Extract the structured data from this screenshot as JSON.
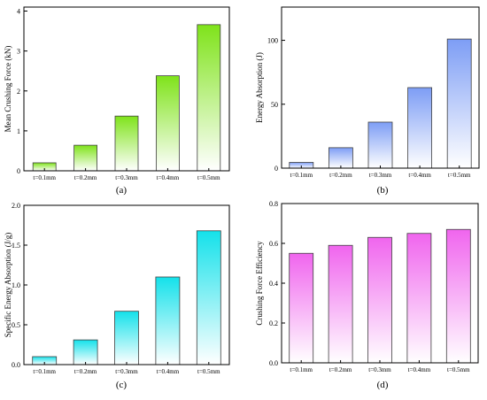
{
  "charts": [
    {
      "panel_label": "(a)",
      "ylabel": "Mean Crushing Force (kN)",
      "yticks": [
        "0",
        "1",
        "2",
        "3",
        "4"
      ],
      "gradient_top": "#7fe31a",
      "gradient_bottom": "#ffffff",
      "border": "#404040"
    },
    {
      "panel_label": "(b)",
      "ylabel": "Energy Absorption (J)",
      "yticks": [
        "0",
        "50",
        "100"
      ],
      "gradient_top": "#7d9df5",
      "gradient_bottom": "#ffffff",
      "border": "#404040"
    },
    {
      "panel_label": "(c)",
      "ylabel": "Specific Energy Absorption (J/g)",
      "yticks": [
        "0.0",
        "0.5",
        "1.0",
        "1.5",
        "2.0"
      ],
      "gradient_top": "#14e1ea",
      "gradient_bottom": "#ffffff",
      "border": "#404040"
    },
    {
      "panel_label": "(d)",
      "ylabel": "Crushing Force Efficiency",
      "yticks": [
        "0.0",
        "0.2",
        "0.4",
        "0.6",
        "0.8"
      ],
      "gradient_top": "#f065ee",
      "gradient_bottom": "#ffffff",
      "border": "#404040"
    }
  ],
  "chart_data": [
    {
      "type": "bar",
      "categories": [
        "t=0.1mm",
        "t=0.2mm",
        "t=0.3mm",
        "t=0.4mm",
        "t=0.5mm"
      ],
      "values": [
        0.2,
        0.64,
        1.37,
        2.38,
        3.66
      ],
      "title": "",
      "xlabel": "",
      "ylabel": "Mean Crushing Force (kN)",
      "ylim": [
        0,
        4.1
      ],
      "grid": false
    },
    {
      "type": "bar",
      "categories": [
        "t=0.1mm",
        "t=0.2mm",
        "t=0.3mm",
        "t=0.4mm",
        "t=0.5mm"
      ],
      "values": [
        4.5,
        16,
        36,
        63,
        101
      ],
      "title": "",
      "xlabel": "",
      "ylabel": "Energy Absorption (J)",
      "ylim": [
        0,
        126
      ],
      "grid": false
    },
    {
      "type": "bar",
      "categories": [
        "t=0.1mm",
        "t=0.2mm",
        "t=0.3mm",
        "t=0.4mm",
        "t=0.5mm"
      ],
      "values": [
        0.1,
        0.31,
        0.67,
        1.1,
        1.68
      ],
      "title": "",
      "xlabel": "",
      "ylabel": "Specific Energy Absorption (J/g)",
      "ylim": [
        0,
        2.0
      ],
      "grid": false
    },
    {
      "type": "bar",
      "categories": [
        "t=0.1mm",
        "t=0.2mm",
        "t=0.3mm",
        "t=0.4mm",
        "t=0.5mm"
      ],
      "values": [
        0.55,
        0.59,
        0.63,
        0.65,
        0.67
      ],
      "title": "",
      "xlabel": "",
      "ylabel": "Crushing Force Efficiency",
      "ylim": [
        0,
        0.8
      ],
      "grid": false
    }
  ]
}
